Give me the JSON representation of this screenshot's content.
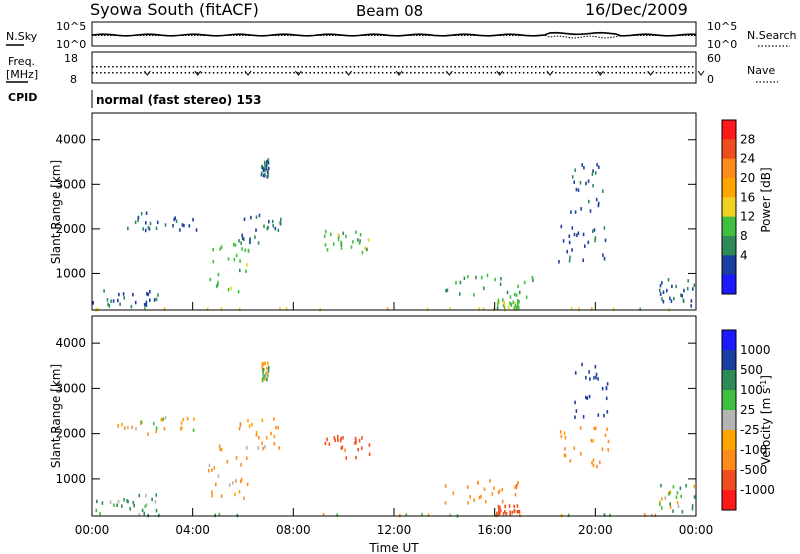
{
  "header": {
    "station": "Syowa South (fitACF)",
    "beam": "Beam 08",
    "date": "16/Dec/2009"
  },
  "noise_panel": {
    "left_label": "N.Sky",
    "right_label": "N.Search",
    "tick_top": "10^5",
    "tick_bottom": "10^0"
  },
  "freq_panel": {
    "left_label_line1": "Freq.",
    "left_label_line2": "[MHz]",
    "right_label": "Nave",
    "left_ticks": [
      "18",
      "8"
    ],
    "right_ticks": [
      "60",
      "0"
    ]
  },
  "cpid": {
    "label": "CPID",
    "value": "normal (fast stereo) 153"
  },
  "chart_data": [
    {
      "type": "heatmap",
      "name": "power",
      "ylabel": "Slant Range [km]",
      "xlabel": "",
      "ylim": [
        180,
        4600
      ],
      "yticks": [
        "1000",
        "2000",
        "3000",
        "4000"
      ],
      "colorbar": {
        "label": "Power [dB]",
        "ticks": [
          "28",
          "24",
          "20",
          "16",
          "12",
          "8",
          "4"
        ],
        "colors": [
          "#ff1a1a",
          "#f04e1e",
          "#ff8c1a",
          "#ffa500",
          "#f0d020",
          "#3fbf3f",
          "#2e8b57",
          "#1c3f9f",
          "#1a1aff"
        ]
      },
      "clusters": [
        {
          "t": [
            0.0,
            2.6
          ],
          "r": [
            250,
            700
          ],
          "value": 5
        },
        {
          "t": [
            0.0,
            24.0
          ],
          "r": [
            220,
            250
          ],
          "value": 16
        },
        {
          "t": [
            1.0,
            4.2
          ],
          "r": [
            2000,
            2400
          ],
          "value": 5
        },
        {
          "t": [
            4.6,
            6.2
          ],
          "r": [
            600,
            1800
          ],
          "value": 12
        },
        {
          "t": [
            5.8,
            7.5
          ],
          "r": [
            1700,
            2400
          ],
          "value": 6
        },
        {
          "t": [
            6.7,
            7.0
          ],
          "r": [
            3200,
            3600
          ],
          "value": 6
        },
        {
          "t": [
            9.2,
            11.0
          ],
          "r": [
            1500,
            2000
          ],
          "value": 12
        },
        {
          "t": [
            14.0,
            17.5
          ],
          "r": [
            500,
            1000
          ],
          "value": 10
        },
        {
          "t": [
            16.0,
            17.0
          ],
          "r": [
            250,
            450
          ],
          "value": 12
        },
        {
          "t": [
            18.5,
            20.5
          ],
          "r": [
            1300,
            2200
          ],
          "value": 5
        },
        {
          "t": [
            19.0,
            20.5
          ],
          "r": [
            2400,
            3600
          ],
          "value": 5
        },
        {
          "t": [
            22.5,
            24.0
          ],
          "r": [
            300,
            900
          ],
          "value": 6
        }
      ]
    },
    {
      "type": "heatmap",
      "name": "velocity",
      "ylabel": "Slant Range [km]",
      "xlabel": "Time UT",
      "ylim": [
        180,
        4600
      ],
      "yticks": [
        "1000",
        "2000",
        "3000",
        "4000"
      ],
      "xticks": [
        "00:00",
        "04:00",
        "08:00",
        "12:00",
        "16:00",
        "20:00",
        "00:00"
      ],
      "colorbar": {
        "label": "Velocity [m s^-1]",
        "ticks": [
          "1000",
          "500",
          "100",
          "25",
          "-25",
          "-100",
          "-500",
          "-1000"
        ],
        "colors": [
          "#1a1aff",
          "#1c3f9f",
          "#2e8b57",
          "#3fbf3f",
          "#b4b4b4",
          "#ffa500",
          "#ff8c1a",
          "#f04e1e",
          "#ff1a1a"
        ]
      },
      "clusters": [
        {
          "t": [
            0.0,
            2.6
          ],
          "r": [
            250,
            700
          ],
          "value": 120
        },
        {
          "t": [
            0.0,
            24.0
          ],
          "r": [
            220,
            250
          ],
          "value": 20
        },
        {
          "t": [
            1.0,
            4.2
          ],
          "r": [
            2000,
            2400
          ],
          "value": -60
        },
        {
          "t": [
            4.6,
            6.2
          ],
          "r": [
            600,
            1800
          ],
          "value": -150
        },
        {
          "t": [
            5.8,
            7.5
          ],
          "r": [
            1700,
            2400
          ],
          "value": -120
        },
        {
          "t": [
            6.7,
            7.0
          ],
          "r": [
            3200,
            3600
          ],
          "value": 0
        },
        {
          "t": [
            9.2,
            11.0
          ],
          "r": [
            1500,
            2000
          ],
          "value": -600
        },
        {
          "t": [
            14.0,
            17.5
          ],
          "r": [
            500,
            1000
          ],
          "value": -400
        },
        {
          "t": [
            16.0,
            17.0
          ],
          "r": [
            250,
            450
          ],
          "value": -700
        },
        {
          "t": [
            18.5,
            20.5
          ],
          "r": [
            1300,
            2200
          ],
          "value": -200
        },
        {
          "t": [
            19.0,
            20.5
          ],
          "r": [
            2400,
            3600
          ],
          "value": 800
        },
        {
          "t": [
            22.5,
            24.0
          ],
          "r": [
            300,
            900
          ],
          "value": 60
        }
      ]
    }
  ]
}
